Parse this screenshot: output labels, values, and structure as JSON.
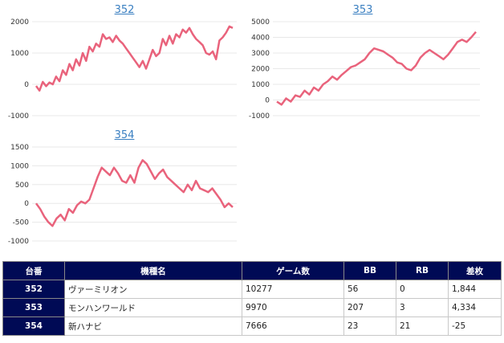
{
  "series_color": "#e9637c",
  "header_color": "#000a55",
  "chart_data": [
    {
      "type": "line",
      "title": "352",
      "ylim": [
        -1000,
        2000
      ],
      "yticks": [
        -1000,
        0,
        1000,
        2000
      ],
      "grid": true,
      "y": [
        -50,
        -200,
        80,
        -60,
        60,
        0,
        250,
        100,
        450,
        300,
        650,
        450,
        800,
        600,
        1000,
        750,
        1200,
        1050,
        1300,
        1200,
        1600,
        1450,
        1500,
        1350,
        1550,
        1400,
        1300,
        1150,
        1000,
        850,
        700,
        550,
        750,
        500,
        800,
        1100,
        900,
        1000,
        1450,
        1250,
        1550,
        1300,
        1600,
        1500,
        1750,
        1650,
        1800,
        1600,
        1450,
        1350,
        1250,
        1000,
        950,
        1050,
        800,
        1400,
        1500,
        1650,
        1850,
        1800
      ]
    },
    {
      "type": "line",
      "title": "353",
      "ylim": [
        -1000,
        5000
      ],
      "yticks": [
        -1000,
        0,
        1000,
        2000,
        3000,
        4000,
        5000
      ],
      "grid": true,
      "y": [
        -100,
        -300,
        100,
        -100,
        300,
        200,
        600,
        350,
        800,
        600,
        1000,
        1200,
        1500,
        1300,
        1600,
        1850,
        2100,
        2200,
        2400,
        2600,
        3000,
        3300,
        3200,
        3100,
        2900,
        2700,
        2400,
        2300,
        2000,
        1900,
        2200,
        2700,
        3000,
        3200,
        3000,
        2800,
        2600,
        2900,
        3300,
        3700,
        3850,
        3700,
        4000,
        4350
      ]
    },
    {
      "type": "line",
      "title": "354",
      "ylim": [
        -1000,
        1500
      ],
      "yticks": [
        -1000,
        -500,
        0,
        500,
        1000,
        1500
      ],
      "grid": true,
      "y": [
        0,
        -150,
        -350,
        -500,
        -600,
        -400,
        -300,
        -450,
        -150,
        -250,
        -50,
        50,
        0,
        100,
        400,
        700,
        950,
        850,
        750,
        950,
        800,
        600,
        550,
        750,
        550,
        950,
        1150,
        1050,
        850,
        650,
        800,
        900,
        700,
        600,
        500,
        400,
        300,
        500,
        350,
        600,
        400,
        350,
        300,
        400,
        250,
        100,
        -100,
        0,
        -100
      ]
    }
  ],
  "table": {
    "headers": [
      "台番",
      "機種名",
      "ゲーム数",
      "BB",
      "RB",
      "差枚"
    ],
    "rows": [
      [
        "352",
        "ヴァーミリオン",
        "10277",
        "56",
        "0",
        "1,844"
      ],
      [
        "353",
        "モンハンワールド",
        "9970",
        "207",
        "3",
        "4,334"
      ],
      [
        "354",
        "新ハナビ",
        "7666",
        "23",
        "21",
        "-25"
      ]
    ]
  }
}
